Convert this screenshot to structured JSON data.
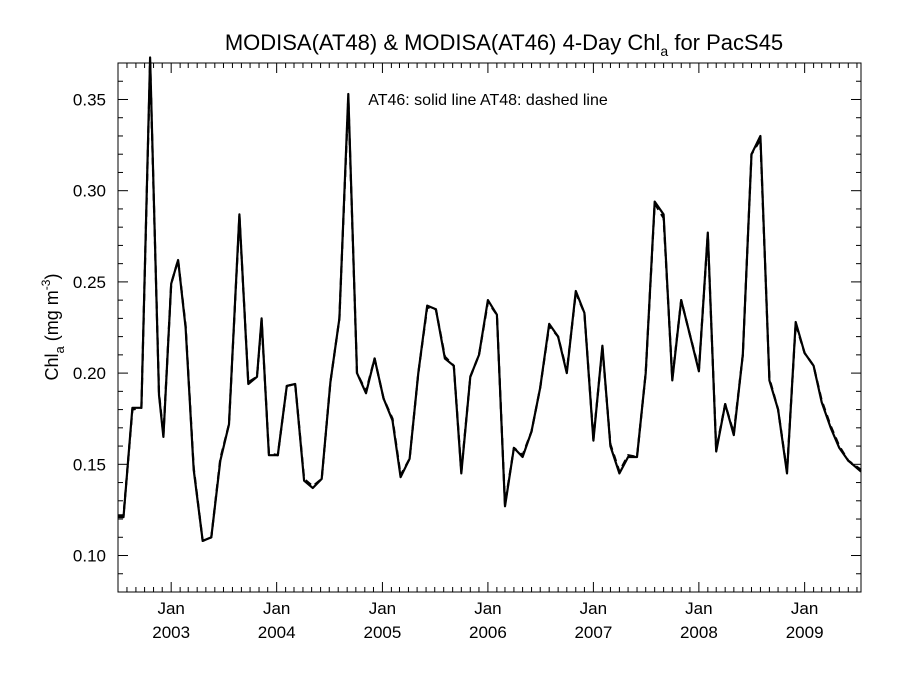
{
  "chart_data": {
    "type": "line",
    "title_main": "MODISA(AT48) & MODISA(AT46) 4-Day Chl",
    "title_sub": "a",
    "title_tail": " for PacS45",
    "annotation": "AT46: solid line   AT48: dashed line",
    "ylabel_main": "Chl",
    "ylabel_sub": "a",
    "ylabel_unit": " (mg m",
    "ylabel_sup": "-3",
    "ylabel_close": ")",
    "ylim": [
      0.08,
      0.37
    ],
    "xlim": [
      "2002-07-01",
      "2009-07-15"
    ],
    "yticks": [
      {
        "value": 0.1,
        "label": "0.10"
      },
      {
        "value": 0.15,
        "label": "0.15"
      },
      {
        "value": 0.2,
        "label": "0.20"
      },
      {
        "value": 0.25,
        "label": "0.25"
      },
      {
        "value": 0.3,
        "label": "0.30"
      },
      {
        "value": 0.35,
        "label": "0.35"
      }
    ],
    "xticks": [
      {
        "date": "2003-01-01",
        "month": "Jan",
        "year": "2003"
      },
      {
        "date": "2004-01-01",
        "month": "Jan",
        "year": "2004"
      },
      {
        "date": "2005-01-01",
        "month": "Jan",
        "year": "2005"
      },
      {
        "date": "2006-01-01",
        "month": "Jan",
        "year": "2006"
      },
      {
        "date": "2007-01-01",
        "month": "Jan",
        "year": "2007"
      },
      {
        "date": "2008-01-01",
        "month": "Jan",
        "year": "2008"
      },
      {
        "date": "2009-01-01",
        "month": "Jan",
        "year": "2009"
      }
    ],
    "series": [
      {
        "style": "solid",
        "points": [
          [
            "2002-07-01",
            0.121
          ],
          [
            "2002-07-20",
            0.121
          ],
          [
            "2002-08-20",
            0.181
          ],
          [
            "2002-09-20",
            0.181
          ],
          [
            "2002-10-20",
            0.373
          ],
          [
            "2002-11-20",
            0.188
          ],
          [
            "2002-12-05",
            0.165
          ],
          [
            "2003-01-01",
            0.249
          ],
          [
            "2003-01-25",
            0.262
          ],
          [
            "2003-02-20",
            0.225
          ],
          [
            "2003-03-20",
            0.147
          ],
          [
            "2003-04-20",
            0.108
          ],
          [
            "2003-05-20",
            0.11
          ],
          [
            "2003-06-20",
            0.152
          ],
          [
            "2003-07-20",
            0.172
          ],
          [
            "2003-08-25",
            0.287
          ],
          [
            "2003-09-25",
            0.194
          ],
          [
            "2003-10-25",
            0.198
          ],
          [
            "2003-11-10",
            0.23
          ],
          [
            "2003-12-05",
            0.155
          ],
          [
            "2004-01-05",
            0.155
          ],
          [
            "2004-02-05",
            0.193
          ],
          [
            "2004-03-05",
            0.194
          ],
          [
            "2004-04-05",
            0.141
          ],
          [
            "2004-05-05",
            0.137
          ],
          [
            "2004-06-05",
            0.142
          ],
          [
            "2004-07-05",
            0.195
          ],
          [
            "2004-08-05",
            0.23
          ],
          [
            "2004-09-05",
            0.353
          ],
          [
            "2004-10-05",
            0.2
          ],
          [
            "2004-11-05",
            0.189
          ],
          [
            "2004-12-05",
            0.208
          ],
          [
            "2005-01-05",
            0.186
          ],
          [
            "2005-02-05",
            0.174
          ],
          [
            "2005-03-05",
            0.143
          ],
          [
            "2005-04-05",
            0.153
          ],
          [
            "2005-05-05",
            0.2
          ],
          [
            "2005-06-05",
            0.237
          ],
          [
            "2005-07-05",
            0.235
          ],
          [
            "2005-08-05",
            0.208
          ],
          [
            "2005-09-05",
            0.204
          ],
          [
            "2005-10-01",
            0.145
          ],
          [
            "2005-11-01",
            0.198
          ],
          [
            "2005-12-01",
            0.21
          ],
          [
            "2006-01-01",
            0.24
          ],
          [
            "2006-02-01",
            0.232
          ],
          [
            "2006-03-01",
            0.127
          ],
          [
            "2006-04-01",
            0.159
          ],
          [
            "2006-05-01",
            0.154
          ],
          [
            "2006-06-01",
            0.168
          ],
          [
            "2006-07-01",
            0.192
          ],
          [
            "2006-08-01",
            0.227
          ],
          [
            "2006-09-01",
            0.22
          ],
          [
            "2006-10-01",
            0.2
          ],
          [
            "2006-11-01",
            0.245
          ],
          [
            "2006-12-01",
            0.233
          ],
          [
            "2007-01-01",
            0.163
          ],
          [
            "2007-02-01",
            0.215
          ],
          [
            "2007-03-01",
            0.16
          ],
          [
            "2007-04-01",
            0.145
          ],
          [
            "2007-05-01",
            0.154
          ],
          [
            "2007-06-01",
            0.154
          ],
          [
            "2007-07-01",
            0.2
          ],
          [
            "2007-08-01",
            0.294
          ],
          [
            "2007-09-01",
            0.287
          ],
          [
            "2007-10-01",
            0.196
          ],
          [
            "2007-11-01",
            0.24
          ],
          [
            "2007-12-01",
            0.221
          ],
          [
            "2008-01-01",
            0.201
          ],
          [
            "2008-02-01",
            0.277
          ],
          [
            "2008-03-01",
            0.157
          ],
          [
            "2008-04-01",
            0.183
          ],
          [
            "2008-05-01",
            0.166
          ],
          [
            "2008-06-01",
            0.21
          ],
          [
            "2008-07-01",
            0.32
          ],
          [
            "2008-08-01",
            0.33
          ],
          [
            "2008-09-01",
            0.196
          ],
          [
            "2008-10-01",
            0.18
          ],
          [
            "2008-11-01",
            0.145
          ],
          [
            "2008-12-01",
            0.228
          ],
          [
            "2009-01-01",
            0.211
          ],
          [
            "2009-02-01",
            0.204
          ],
          [
            "2009-03-01",
            0.184
          ],
          [
            "2009-04-01",
            0.17
          ],
          [
            "2009-05-01",
            0.159
          ],
          [
            "2009-06-01",
            0.152
          ],
          [
            "2009-07-15",
            0.146
          ]
        ]
      },
      {
        "style": "dashed",
        "points": [
          [
            "2002-07-01",
            0.122
          ],
          [
            "2002-07-20",
            0.122
          ],
          [
            "2002-08-20",
            0.18
          ],
          [
            "2002-09-20",
            0.181
          ],
          [
            "2002-10-20",
            0.371
          ],
          [
            "2002-11-20",
            0.189
          ],
          [
            "2002-12-05",
            0.166
          ],
          [
            "2003-01-01",
            0.249
          ],
          [
            "2003-01-25",
            0.262
          ],
          [
            "2003-02-20",
            0.226
          ],
          [
            "2003-03-20",
            0.148
          ],
          [
            "2003-04-20",
            0.108
          ],
          [
            "2003-05-20",
            0.11
          ],
          [
            "2003-06-20",
            0.153
          ],
          [
            "2003-07-20",
            0.172
          ],
          [
            "2003-08-25",
            0.286
          ],
          [
            "2003-09-25",
            0.195
          ],
          [
            "2003-10-25",
            0.198
          ],
          [
            "2003-11-10",
            0.229
          ],
          [
            "2003-12-05",
            0.156
          ],
          [
            "2004-01-05",
            0.155
          ],
          [
            "2004-02-05",
            0.193
          ],
          [
            "2004-03-05",
            0.194
          ],
          [
            "2004-04-05",
            0.142
          ],
          [
            "2004-05-05",
            0.138
          ],
          [
            "2004-06-05",
            0.142
          ],
          [
            "2004-07-05",
            0.195
          ],
          [
            "2004-08-05",
            0.23
          ],
          [
            "2004-09-05",
            0.351
          ],
          [
            "2004-10-05",
            0.2
          ],
          [
            "2004-11-05",
            0.19
          ],
          [
            "2004-12-05",
            0.208
          ],
          [
            "2005-01-05",
            0.186
          ],
          [
            "2005-02-05",
            0.175
          ],
          [
            "2005-03-05",
            0.144
          ],
          [
            "2005-04-05",
            0.153
          ],
          [
            "2005-05-05",
            0.2
          ],
          [
            "2005-06-05",
            0.236
          ],
          [
            "2005-07-05",
            0.235
          ],
          [
            "2005-08-05",
            0.209
          ],
          [
            "2005-09-05",
            0.204
          ],
          [
            "2005-10-01",
            0.146
          ],
          [
            "2005-11-01",
            0.198
          ],
          [
            "2005-12-01",
            0.21
          ],
          [
            "2006-01-01",
            0.239
          ],
          [
            "2006-02-01",
            0.232
          ],
          [
            "2006-03-01",
            0.128
          ],
          [
            "2006-04-01",
            0.159
          ],
          [
            "2006-05-01",
            0.155
          ],
          [
            "2006-06-01",
            0.168
          ],
          [
            "2006-07-01",
            0.192
          ],
          [
            "2006-08-01",
            0.226
          ],
          [
            "2006-09-01",
            0.22
          ],
          [
            "2006-10-01",
            0.201
          ],
          [
            "2006-11-01",
            0.244
          ],
          [
            "2006-12-01",
            0.233
          ],
          [
            "2007-01-01",
            0.164
          ],
          [
            "2007-02-01",
            0.214
          ],
          [
            "2007-03-01",
            0.161
          ],
          [
            "2007-04-01",
            0.146
          ],
          [
            "2007-05-01",
            0.155
          ],
          [
            "2007-06-01",
            0.154
          ],
          [
            "2007-07-01",
            0.2
          ],
          [
            "2007-08-01",
            0.293
          ],
          [
            "2007-09-01",
            0.285
          ],
          [
            "2007-10-01",
            0.197
          ],
          [
            "2007-11-01",
            0.24
          ],
          [
            "2007-12-01",
            0.221
          ],
          [
            "2008-01-01",
            0.202
          ],
          [
            "2008-02-01",
            0.276
          ],
          [
            "2008-03-01",
            0.158
          ],
          [
            "2008-04-01",
            0.183
          ],
          [
            "2008-05-01",
            0.167
          ],
          [
            "2008-06-01",
            0.21
          ],
          [
            "2008-07-01",
            0.32
          ],
          [
            "2008-08-01",
            0.328
          ],
          [
            "2008-09-01",
            0.197
          ],
          [
            "2008-10-01",
            0.18
          ],
          [
            "2008-11-01",
            0.146
          ],
          [
            "2008-12-01",
            0.227
          ],
          [
            "2009-01-01",
            0.211
          ],
          [
            "2009-02-01",
            0.204
          ],
          [
            "2009-03-01",
            0.185
          ],
          [
            "2009-04-01",
            0.171
          ],
          [
            "2009-05-01",
            0.16
          ],
          [
            "2009-06-01",
            0.152
          ],
          [
            "2009-07-15",
            0.147
          ]
        ]
      }
    ]
  }
}
